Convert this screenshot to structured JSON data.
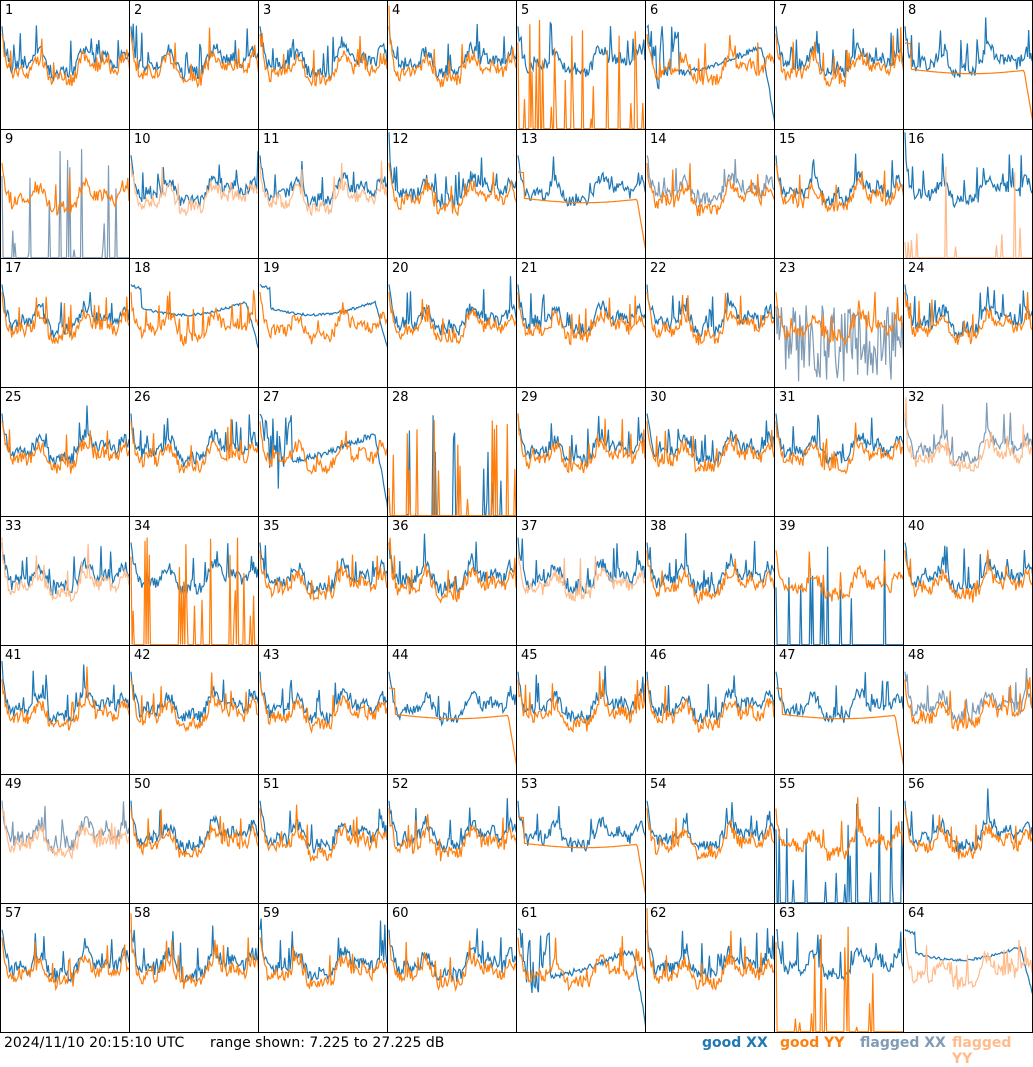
{
  "footer": {
    "timestamp": "2024/11/10 20:15:10 UTC",
    "range_text": "range shown: 7.225 to 27.225 dB",
    "legend": [
      {
        "label": "good XX",
        "color": "#1f77b4"
      },
      {
        "label": "good YY",
        "color": "#ff7f0e"
      },
      {
        "label": "flagged XX",
        "color": "#7f9bb5"
      },
      {
        "label": "flagged YY",
        "color": "#ffbb8a"
      }
    ]
  },
  "chart_data": {
    "type": "line",
    "ylim": [
      7.225,
      27.225
    ],
    "yunit": "dB",
    "panels": [
      {
        "n": "1",
        "xx": "good",
        "yy": "good",
        "shape": "normal"
      },
      {
        "n": "2",
        "xx": "good",
        "yy": "good",
        "shape": "normal"
      },
      {
        "n": "3",
        "xx": "good",
        "yy": "good",
        "shape": "normal"
      },
      {
        "n": "4",
        "xx": "good",
        "yy": "good",
        "shape": "normal"
      },
      {
        "n": "5",
        "xx": "good",
        "yy": "good",
        "shape": "yy_spikes"
      },
      {
        "n": "6",
        "xx": "good",
        "yy": "good",
        "shape": "xx_dip"
      },
      {
        "n": "7",
        "xx": "good",
        "yy": "good",
        "shape": "normal"
      },
      {
        "n": "8",
        "xx": "good",
        "yy": "good",
        "shape": "yy_flat"
      },
      {
        "n": "9",
        "xx": "flagged",
        "yy": "good",
        "shape": "xx_spikes"
      },
      {
        "n": "10",
        "xx": "good",
        "yy": "flagged",
        "shape": "normal"
      },
      {
        "n": "11",
        "xx": "good",
        "yy": "flagged",
        "shape": "normal"
      },
      {
        "n": "12",
        "xx": "good",
        "yy": "good",
        "shape": "normal"
      },
      {
        "n": "13",
        "xx": "good",
        "yy": "good",
        "shape": "yy_flat"
      },
      {
        "n": "14",
        "xx": "flagged",
        "yy": "good",
        "shape": "normal"
      },
      {
        "n": "15",
        "xx": "good",
        "yy": "good",
        "shape": "normal"
      },
      {
        "n": "16",
        "xx": "good",
        "yy": "flagged",
        "shape": "yy_spikes"
      },
      {
        "n": "17",
        "xx": "good",
        "yy": "good",
        "shape": "normal"
      },
      {
        "n": "18",
        "xx": "good",
        "yy": "good",
        "shape": "xx_smooth"
      },
      {
        "n": "19",
        "xx": "good",
        "yy": "good",
        "shape": "xx_smooth"
      },
      {
        "n": "20",
        "xx": "good",
        "yy": "good",
        "shape": "normal"
      },
      {
        "n": "21",
        "xx": "good",
        "yy": "good",
        "shape": "normal"
      },
      {
        "n": "22",
        "xx": "good",
        "yy": "good",
        "shape": "normal"
      },
      {
        "n": "23",
        "xx": "flagged",
        "yy": "good",
        "shape": "xx_noise"
      },
      {
        "n": "24",
        "xx": "good",
        "yy": "good",
        "shape": "normal"
      },
      {
        "n": "25",
        "xx": "good",
        "yy": "good",
        "shape": "normal"
      },
      {
        "n": "26",
        "xx": "good",
        "yy": "good",
        "shape": "normal"
      },
      {
        "n": "27",
        "xx": "good",
        "yy": "good",
        "shape": "xx_dip"
      },
      {
        "n": "28",
        "xx": "good",
        "yy": "good",
        "shape": "both_spikes"
      },
      {
        "n": "29",
        "xx": "good",
        "yy": "good",
        "shape": "normal"
      },
      {
        "n": "30",
        "xx": "good",
        "yy": "good",
        "shape": "normal"
      },
      {
        "n": "31",
        "xx": "good",
        "yy": "good",
        "shape": "normal"
      },
      {
        "n": "32",
        "xx": "flagged",
        "yy": "flagged",
        "shape": "normal"
      },
      {
        "n": "33",
        "xx": "good",
        "yy": "flagged",
        "shape": "normal"
      },
      {
        "n": "34",
        "xx": "good",
        "yy": "good",
        "shape": "yy_spikes"
      },
      {
        "n": "35",
        "xx": "good",
        "yy": "good",
        "shape": "normal"
      },
      {
        "n": "36",
        "xx": "good",
        "yy": "good",
        "shape": "normal"
      },
      {
        "n": "37",
        "xx": "good",
        "yy": "flagged",
        "shape": "normal"
      },
      {
        "n": "38",
        "xx": "good",
        "yy": "good",
        "shape": "normal"
      },
      {
        "n": "39",
        "xx": "good",
        "yy": "good",
        "shape": "xx_spikes"
      },
      {
        "n": "40",
        "xx": "good",
        "yy": "good",
        "shape": "normal"
      },
      {
        "n": "41",
        "xx": "good",
        "yy": "good",
        "shape": "normal"
      },
      {
        "n": "42",
        "xx": "good",
        "yy": "good",
        "shape": "normal"
      },
      {
        "n": "43",
        "xx": "good",
        "yy": "good",
        "shape": "normal"
      },
      {
        "n": "44",
        "xx": "good",
        "yy": "good",
        "shape": "yy_flat"
      },
      {
        "n": "45",
        "xx": "good",
        "yy": "good",
        "shape": "normal"
      },
      {
        "n": "46",
        "xx": "good",
        "yy": "good",
        "shape": "normal"
      },
      {
        "n": "47",
        "xx": "good",
        "yy": "good",
        "shape": "yy_flat"
      },
      {
        "n": "48",
        "xx": "flagged",
        "yy": "good",
        "shape": "normal"
      },
      {
        "n": "49",
        "xx": "flagged",
        "yy": "flagged",
        "shape": "normal"
      },
      {
        "n": "50",
        "xx": "good",
        "yy": "good",
        "shape": "normal"
      },
      {
        "n": "51",
        "xx": "good",
        "yy": "good",
        "shape": "normal"
      },
      {
        "n": "52",
        "xx": "good",
        "yy": "good",
        "shape": "normal"
      },
      {
        "n": "53",
        "xx": "good",
        "yy": "good",
        "shape": "yy_flat"
      },
      {
        "n": "54",
        "xx": "good",
        "yy": "good",
        "shape": "normal"
      },
      {
        "n": "55",
        "xx": "good",
        "yy": "good",
        "shape": "xx_spikes"
      },
      {
        "n": "56",
        "xx": "good",
        "yy": "good",
        "shape": "normal"
      },
      {
        "n": "57",
        "xx": "good",
        "yy": "good",
        "shape": "normal"
      },
      {
        "n": "58",
        "xx": "good",
        "yy": "good",
        "shape": "normal"
      },
      {
        "n": "59",
        "xx": "good",
        "yy": "good",
        "shape": "normal"
      },
      {
        "n": "60",
        "xx": "good",
        "yy": "good",
        "shape": "normal"
      },
      {
        "n": "61",
        "xx": "good",
        "yy": "good",
        "shape": "xx_dip"
      },
      {
        "n": "62",
        "xx": "good",
        "yy": "good",
        "shape": "normal"
      },
      {
        "n": "63",
        "xx": "good",
        "yy": "good",
        "shape": "yy_spikes"
      },
      {
        "n": "64",
        "xx": "good",
        "yy": "flagged",
        "shape": "xx_smooth"
      }
    ]
  }
}
